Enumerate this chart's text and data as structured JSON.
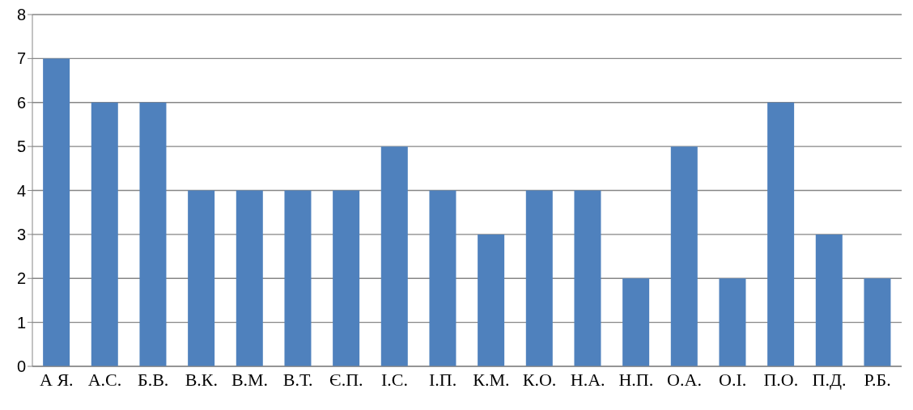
{
  "chart_data": {
    "type": "bar",
    "categories": [
      "А Я.",
      "А.С.",
      "Б.В.",
      "В.К.",
      "В.М.",
      "В.Т.",
      "Є.П.",
      "І.С.",
      "І.П.",
      "К.М.",
      "К.О.",
      "Н.А.",
      "Н.П.",
      "О.А.",
      "О.І.",
      "П.О.",
      "П.Д.",
      "Р.Б."
    ],
    "values": [
      7,
      6,
      6,
      4,
      4,
      4,
      4,
      5,
      4,
      3,
      4,
      4,
      2,
      5,
      2,
      6,
      3,
      2
    ],
    "color": "#4f81bd",
    "ylim": [
      0,
      8
    ],
    "yticks": [
      0,
      1,
      2,
      3,
      4,
      5,
      6,
      7,
      8
    ],
    "grid": "y",
    "legend": false
  }
}
